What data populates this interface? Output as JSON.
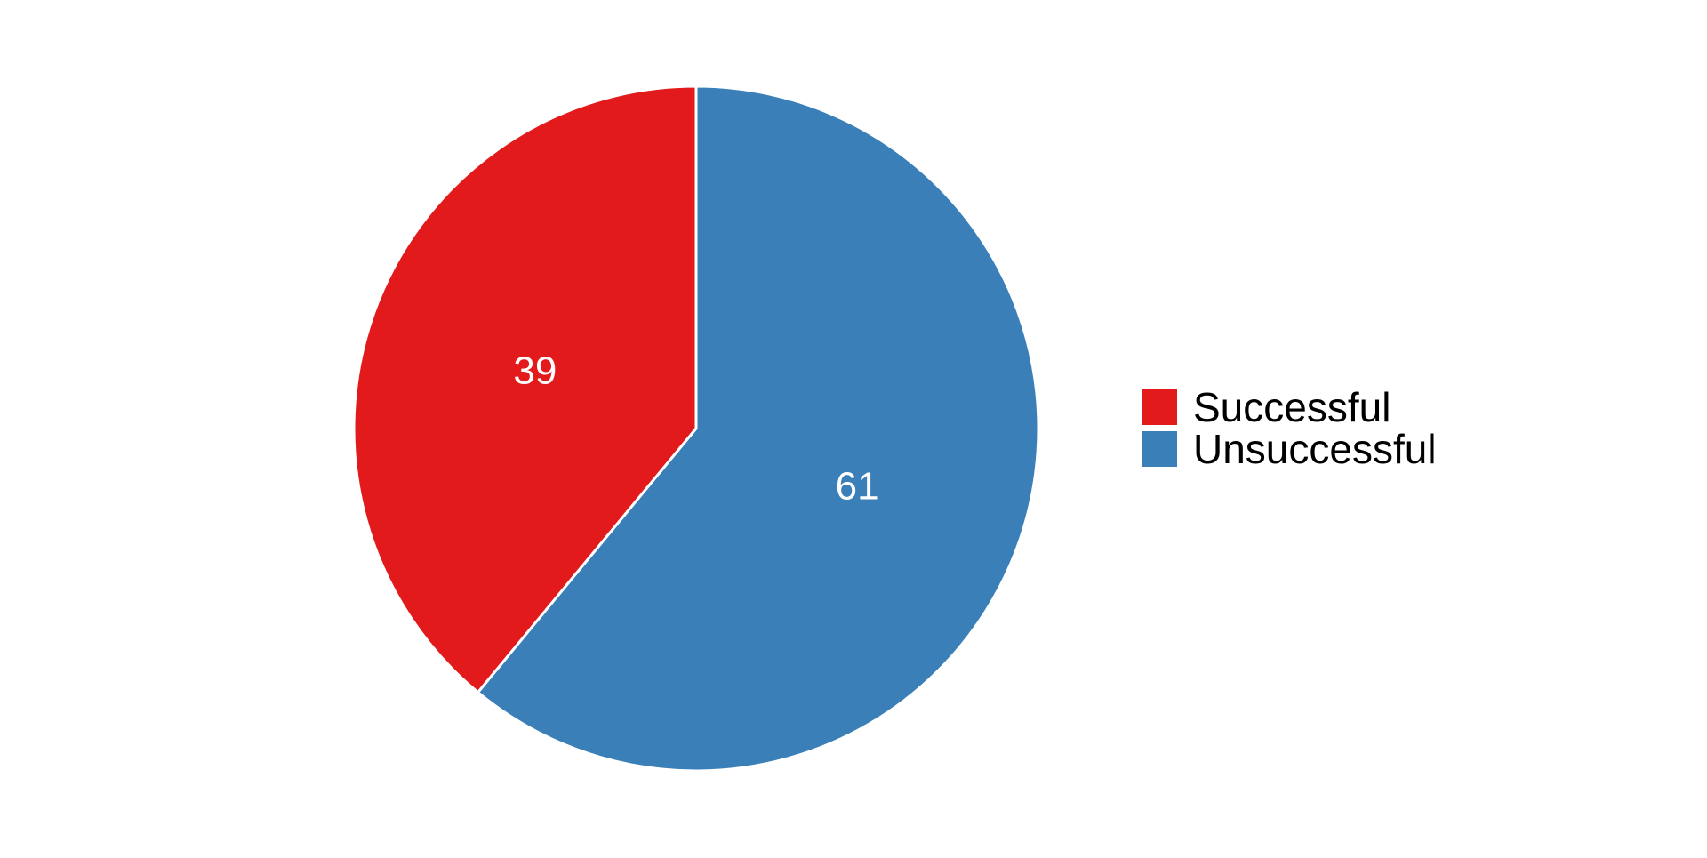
{
  "chart_data": {
    "type": "pie",
    "title": "",
    "categories": [
      "Successful",
      "Unsuccessful"
    ],
    "values": [
      39,
      61
    ],
    "data_labels": [
      "39",
      "61"
    ],
    "colors": [
      "#e31a1c",
      "#3a7fb8"
    ],
    "start_angle_deg": 0,
    "direction": "counterclockwise",
    "legend": {
      "position": "right",
      "items": [
        {
          "label": "Successful",
          "color": "#e31a1c"
        },
        {
          "label": "Unsuccessful",
          "color": "#3a7fb8"
        }
      ]
    }
  }
}
